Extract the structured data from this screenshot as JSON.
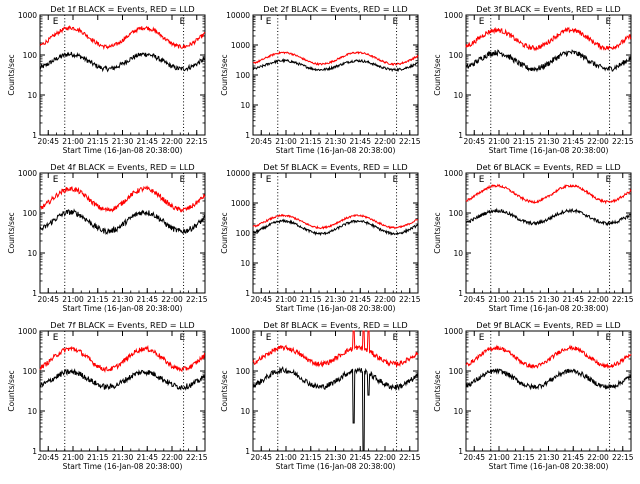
{
  "page": {
    "x_tick_labels": [
      "20:45",
      "21:00",
      "21:15",
      "21:30",
      "21:45",
      "22:00",
      "22:15"
    ],
    "x_label": "Start Time (16-Jan-08 20:38:00)",
    "y_label": "Counts/sec",
    "marker_label_start": "E",
    "marker_label_end": "E",
    "colors": {
      "events": "#000000",
      "lld": "#ff0000",
      "axes": "#000000"
    }
  },
  "chart_data": [
    {
      "type": "line",
      "title": "Det 1f BLACK = Events, RED = LLD",
      "y_scale": "log",
      "ylim": [
        1,
        1000
      ],
      "xlim": [
        0,
        100
      ],
      "y_ticks": [
        1,
        10,
        100,
        1000
      ],
      "y_tick_labels": [
        "1",
        "10",
        "100",
        "1000"
      ],
      "markers_x": [
        15,
        87
      ],
      "series": [
        {
          "name": "BLACK = Events",
          "base": [
            45,
            105
          ],
          "noise": 0.06,
          "dips": []
        },
        {
          "name": "RED = LLD",
          "base": [
            160,
            480
          ],
          "noise": 0.05,
          "spikes": []
        }
      ]
    },
    {
      "type": "line",
      "title": "Det 2f BLACK = Events, RED = LLD",
      "y_scale": "log",
      "ylim": [
        1,
        10000
      ],
      "xlim": [
        0,
        100
      ],
      "y_ticks": [
        1,
        10,
        100,
        1000,
        10000
      ],
      "y_tick_labels": [
        "1",
        "10",
        "100",
        "1000",
        "10000"
      ],
      "markers_x": [
        15,
        87
      ],
      "series": [
        {
          "name": "BLACK = Events",
          "base": [
            150,
            300
          ],
          "noise": 0.04,
          "dips": []
        },
        {
          "name": "RED = LLD",
          "base": [
            230,
            560
          ],
          "noise": 0.03,
          "spikes": []
        }
      ]
    },
    {
      "type": "line",
      "title": "Det 3f BLACK = Events, RED = LLD",
      "y_scale": "log",
      "ylim": [
        1,
        1000
      ],
      "xlim": [
        0,
        100
      ],
      "y_ticks": [
        1,
        10,
        100,
        1000
      ],
      "y_tick_labels": [
        "1",
        "10",
        "100",
        "1000"
      ],
      "markers_x": [
        15,
        87
      ],
      "series": [
        {
          "name": "BLACK = Events",
          "base": [
            45,
            115
          ],
          "noise": 0.07,
          "dips": []
        },
        {
          "name": "RED = LLD",
          "base": [
            150,
            420
          ],
          "noise": 0.06,
          "spikes": []
        }
      ]
    },
    {
      "type": "line",
      "title": "Det 4f BLACK = Events, RED = LLD",
      "y_scale": "log",
      "ylim": [
        1,
        1000
      ],
      "xlim": [
        0,
        100
      ],
      "y_ticks": [
        1,
        10,
        100,
        1000
      ],
      "y_tick_labels": [
        "1",
        "10",
        "100",
        "1000"
      ],
      "markers_x": [
        15,
        87
      ],
      "series": [
        {
          "name": "BLACK = Events",
          "base": [
            35,
            105
          ],
          "noise": 0.07,
          "dips": []
        },
        {
          "name": "RED = LLD",
          "base": [
            120,
            400
          ],
          "noise": 0.06,
          "spikes": []
        }
      ]
    },
    {
      "type": "line",
      "title": "Det 5f BLACK = Events, RED = LLD",
      "y_scale": "log",
      "ylim": [
        1,
        10000
      ],
      "xlim": [
        0,
        100
      ],
      "y_ticks": [
        1,
        10,
        100,
        1000,
        10000
      ],
      "y_tick_labels": [
        "1",
        "10",
        "100",
        "1000",
        "10000"
      ],
      "markers_x": [
        15,
        87
      ],
      "series": [
        {
          "name": "BLACK = Events",
          "base": [
            95,
            250
          ],
          "noise": 0.04,
          "dips": []
        },
        {
          "name": "RED = LLD",
          "base": [
            150,
            380
          ],
          "noise": 0.03,
          "spikes": []
        }
      ]
    },
    {
      "type": "line",
      "title": "Det 6f BLACK = Events, RED = LLD",
      "y_scale": "log",
      "ylim": [
        1,
        1000
      ],
      "xlim": [
        0,
        100
      ],
      "y_ticks": [
        1,
        10,
        100,
        1000
      ],
      "y_tick_labels": [
        "1",
        "10",
        "100",
        "1000"
      ],
      "markers_x": [
        15,
        87
      ],
      "series": [
        {
          "name": "BLACK = Events",
          "base": [
            55,
            115
          ],
          "noise": 0.04,
          "dips": []
        },
        {
          "name": "RED = LLD",
          "base": [
            190,
            480
          ],
          "noise": 0.03,
          "spikes": []
        }
      ]
    },
    {
      "type": "line",
      "title": "Det 7f BLACK = Events, RED = LLD",
      "y_scale": "log",
      "ylim": [
        1,
        1000
      ],
      "xlim": [
        0,
        100
      ],
      "y_ticks": [
        1,
        10,
        100,
        1000
      ],
      "y_tick_labels": [
        "1",
        "10",
        "100",
        "1000"
      ],
      "markers_x": [
        15,
        87
      ],
      "series": [
        {
          "name": "BLACK = Events",
          "base": [
            40,
            95
          ],
          "noise": 0.07,
          "dips": []
        },
        {
          "name": "RED = LLD",
          "base": [
            110,
            360
          ],
          "noise": 0.06,
          "spikes": []
        }
      ]
    },
    {
      "type": "line",
      "title": "Det 8f BLACK = Events, RED = LLD",
      "y_scale": "log",
      "ylim": [
        1,
        1000
      ],
      "xlim": [
        0,
        100
      ],
      "y_ticks": [
        1,
        10,
        100,
        1000
      ],
      "y_tick_labels": [
        "1",
        "10",
        "100",
        "1000"
      ],
      "markers_x": [
        15,
        87
      ],
      "series": [
        {
          "name": "BLACK = Events",
          "base": [
            40,
            105
          ],
          "noise": 0.07,
          "dips": [
            [
              61,
              5
            ],
            [
              67,
              1
            ],
            [
              70,
              25
            ]
          ]
        },
        {
          "name": "RED = LLD",
          "base": [
            150,
            380
          ],
          "noise": 0.06,
          "spikes": [
            [
              61,
              1000
            ],
            [
              67,
              1000
            ],
            [
              70,
              1000
            ]
          ]
        }
      ]
    },
    {
      "type": "line",
      "title": "Det 9f BLACK = Events, RED = LLD",
      "y_scale": "log",
      "ylim": [
        1,
        1000
      ],
      "xlim": [
        0,
        100
      ],
      "y_ticks": [
        1,
        10,
        100,
        1000
      ],
      "y_tick_labels": [
        "1",
        "10",
        "100",
        "1000"
      ],
      "markers_x": [
        15,
        87
      ],
      "series": [
        {
          "name": "BLACK = Events",
          "base": [
            40,
            100
          ],
          "noise": 0.06,
          "dips": []
        },
        {
          "name": "RED = LLD",
          "base": [
            130,
            380
          ],
          "noise": 0.05,
          "spikes": []
        }
      ]
    }
  ]
}
